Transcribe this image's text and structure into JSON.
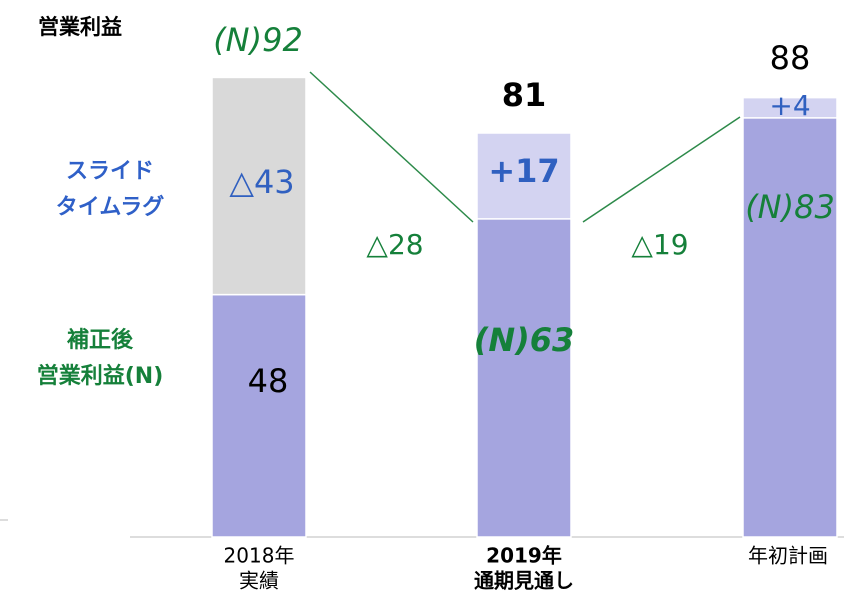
{
  "chart_data": {
    "type": "stacked_bar",
    "title": "営業利益",
    "categories": [
      [
        "2018年",
        "実績"
      ],
      [
        "2019年",
        "通期見通し"
      ],
      [
        "年初計画"
      ]
    ],
    "series": [
      {
        "name": [
          "補正後",
          "営業利益(N)"
        ],
        "color": "#a5a5df",
        "values": [
          48,
          63,
          83
        ],
        "value_labels": [
          "48",
          "(N)63",
          "(N)83"
        ]
      },
      {
        "name": [
          "スライド",
          "タイムラグ"
        ],
        "colors": [
          "#d9d9d9",
          "#d3d3f1",
          "#d3d3f1"
        ],
        "values": [
          43,
          17,
          4
        ],
        "value_labels": [
          "△43",
          "+17",
          "+4"
        ]
      }
    ],
    "totals": [
      92,
      81,
      88
    ],
    "total_labels": [
      "(N)92",
      "81",
      "88"
    ],
    "annotations": [
      "△28",
      "△19"
    ],
    "ylim": [
      0,
      106
    ]
  }
}
